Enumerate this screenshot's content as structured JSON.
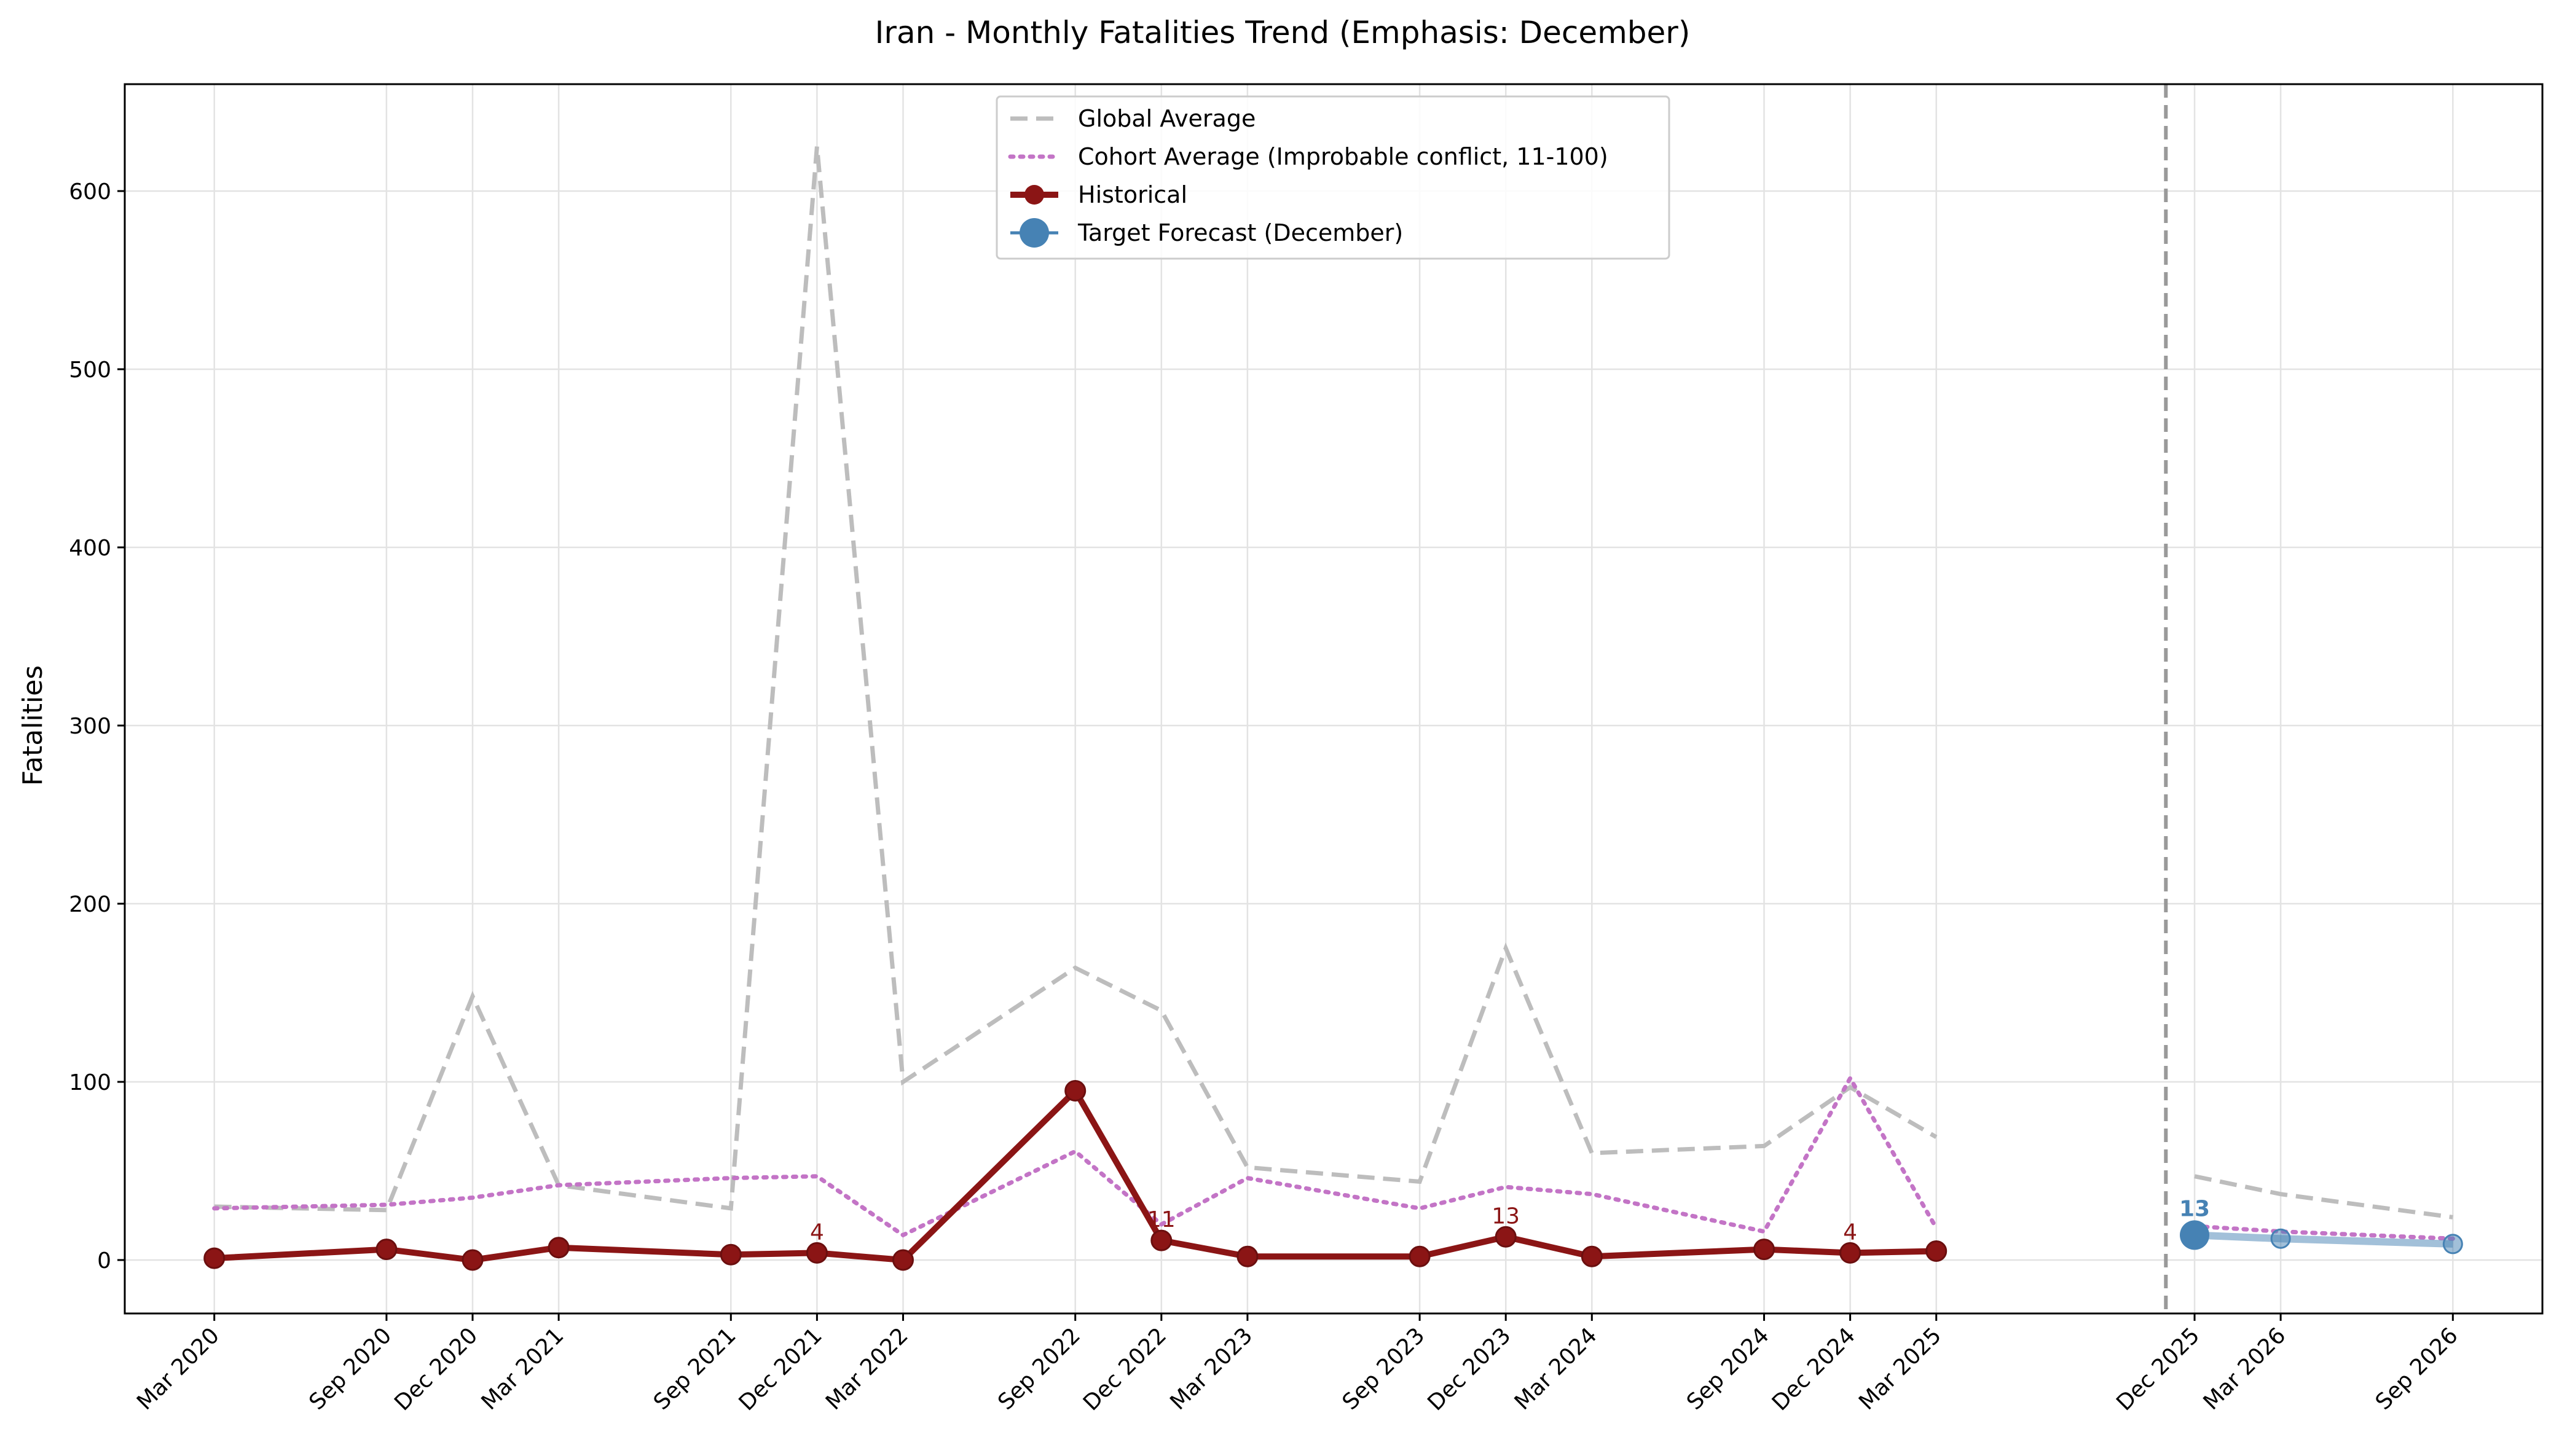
{
  "chart_data": {
    "type": "line",
    "title": "Iran - Monthly Fatalities Trend (Emphasis: December)",
    "xlabel": "",
    "ylabel": "Fatalities",
    "ylim": [
      -30,
      660
    ],
    "y_ticks": [
      0,
      100,
      200,
      300,
      400,
      500,
      600
    ],
    "grid": true,
    "legend_position": "upper-center",
    "x_ticks": [
      "Mar 2020",
      "Sep 2020",
      "Dec 2020",
      "Mar 2021",
      "Sep 2021",
      "Dec 2021",
      "Mar 2022",
      "Sep 2022",
      "Dec 2022",
      "Mar 2023",
      "Sep 2023",
      "Dec 2023",
      "Mar 2024",
      "Sep 2024",
      "Dec 2024",
      "Mar 2025",
      "Dec 2025",
      "Mar 2026",
      "Sep 2026"
    ],
    "forecast_divider": "Nov 2025",
    "series": [
      {
        "name": "Global Average",
        "color": "#bdbdbd",
        "style": "dashed",
        "x": [
          "Mar 2020",
          "Sep 2020",
          "Dec 2020",
          "Mar 2021",
          "Sep 2021",
          "Dec 2021",
          "Mar 2022",
          "Sep 2022",
          "Dec 2022",
          "Mar 2023",
          "Sep 2023",
          "Dec 2023",
          "Mar 2024",
          "Sep 2024",
          "Dec 2024",
          "Mar 2025"
        ],
        "values": [
          30,
          28,
          148,
          42,
          29,
          625,
          100,
          164,
          140,
          52,
          44,
          175,
          60,
          64,
          97,
          69
        ]
      },
      {
        "name": "Cohort Average (Improbable conflict, 11-100)",
        "color": "#c374c6",
        "style": "dotted",
        "x": [
          "Mar 2020",
          "Sep 2020",
          "Dec 2020",
          "Mar 2021",
          "Sep 2021",
          "Dec 2021",
          "Mar 2022",
          "Sep 2022",
          "Dec 2022",
          "Mar 2023",
          "Sep 2023",
          "Dec 2023",
          "Mar 2024",
          "Sep 2024",
          "Dec 2024",
          "Mar 2025"
        ],
        "values": [
          29,
          31,
          35,
          42,
          46,
          47,
          14,
          61,
          20,
          46,
          29,
          41,
          37,
          16,
          102,
          18
        ]
      },
      {
        "name": "Historical",
        "color": "#8b1515",
        "style": "solid",
        "x": [
          "Mar 2020",
          "Sep 2020",
          "Dec 2020",
          "Mar 2021",
          "Sep 2021",
          "Dec 2021",
          "Mar 2022",
          "Sep 2022",
          "Dec 2022",
          "Mar 2023",
          "Sep 2023",
          "Dec 2023",
          "Mar 2024",
          "Sep 2024",
          "Dec 2024",
          "Mar 2025"
        ],
        "values": [
          1,
          6,
          0,
          7,
          3,
          4,
          0,
          95,
          11,
          2,
          2,
          13,
          2,
          6,
          4,
          5
        ]
      },
      {
        "name": "Target Forecast (December)",
        "color": "#4682b4",
        "style": "solid",
        "x": [
          "Dec 2025"
        ],
        "values": [
          13
        ]
      }
    ],
    "forecast_other": {
      "color": "#4682b4",
      "x": [
        "Dec 2025",
        "Mar 2026",
        "Sep 2026"
      ],
      "values": [
        14,
        12,
        9
      ]
    },
    "forecast_global": {
      "color": "#bdbdbd",
      "x": [
        "Dec 2025",
        "Mar 2026",
        "Sep 2026"
      ],
      "values": [
        47,
        37,
        24
      ]
    },
    "forecast_cohort": {
      "color": "#c374c6",
      "x": [
        "Dec 2025",
        "Mar 2026",
        "Sep 2026"
      ],
      "values": [
        19,
        16,
        12
      ]
    },
    "annotations": [
      {
        "x": "Dec 2021",
        "text": "4",
        "value": 4,
        "color": "#8b1515"
      },
      {
        "x": "Dec 2022",
        "text": "11",
        "value": 11,
        "color": "#8b1515"
      },
      {
        "x": "Dec 2023",
        "text": "13",
        "value": 13,
        "color": "#8b1515"
      },
      {
        "x": "Dec 2024",
        "text": "4",
        "value": 4,
        "color": "#8b1515"
      },
      {
        "x": "Dec 2025",
        "text": "13",
        "value": 13,
        "color": "#4682b4"
      }
    ]
  }
}
